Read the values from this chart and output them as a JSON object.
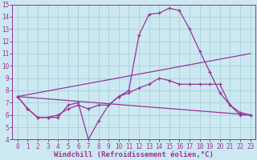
{
  "background_color": "#cce8f0",
  "grid_color": "#aad4e0",
  "line_color": "#993399",
  "spine_color": "#993399",
  "xlabel": "Windchill (Refroidissement éolien,°C)",
  "xlim": [
    -0.5,
    23.5
  ],
  "ylim": [
    4,
    15
  ],
  "xticks": [
    0,
    1,
    2,
    3,
    4,
    5,
    6,
    7,
    8,
    9,
    10,
    11,
    12,
    13,
    14,
    15,
    16,
    17,
    18,
    19,
    20,
    21,
    22,
    23
  ],
  "yticks": [
    4,
    5,
    6,
    7,
    8,
    9,
    10,
    11,
    12,
    13,
    14,
    15
  ],
  "line1_x": [
    0,
    1,
    2,
    3,
    4,
    5,
    6,
    7,
    8,
    9,
    10,
    11,
    12,
    13,
    14,
    15,
    16,
    17,
    18,
    19,
    20,
    21,
    22,
    23
  ],
  "line1_y": [
    7.5,
    6.5,
    5.8,
    5.8,
    5.8,
    6.8,
    7.0,
    4.0,
    5.5,
    6.8,
    7.5,
    8.0,
    12.5,
    14.2,
    14.3,
    14.7,
    14.5,
    13.0,
    11.2,
    9.5,
    7.8,
    6.8,
    6.0,
    6.0
  ],
  "line2_x": [
    0,
    1,
    2,
    3,
    4,
    5,
    6,
    7,
    8,
    9,
    10,
    11,
    12,
    13,
    14,
    15,
    16,
    17,
    18,
    19,
    20,
    21,
    22,
    23
  ],
  "line2_y": [
    7.5,
    6.5,
    5.8,
    5.8,
    6.0,
    6.5,
    6.8,
    6.5,
    6.8,
    6.8,
    7.5,
    7.8,
    8.2,
    8.5,
    9.0,
    8.8,
    8.5,
    8.5,
    8.5,
    8.5,
    8.5,
    6.8,
    6.2,
    6.0
  ],
  "line3_x": [
    0,
    23
  ],
  "line3_y": [
    7.5,
    6.0
  ],
  "line4_x": [
    0,
    23
  ],
  "line4_y": [
    7.5,
    11.0
  ],
  "font_size_ticks": 5.5,
  "font_size_label": 6.5
}
